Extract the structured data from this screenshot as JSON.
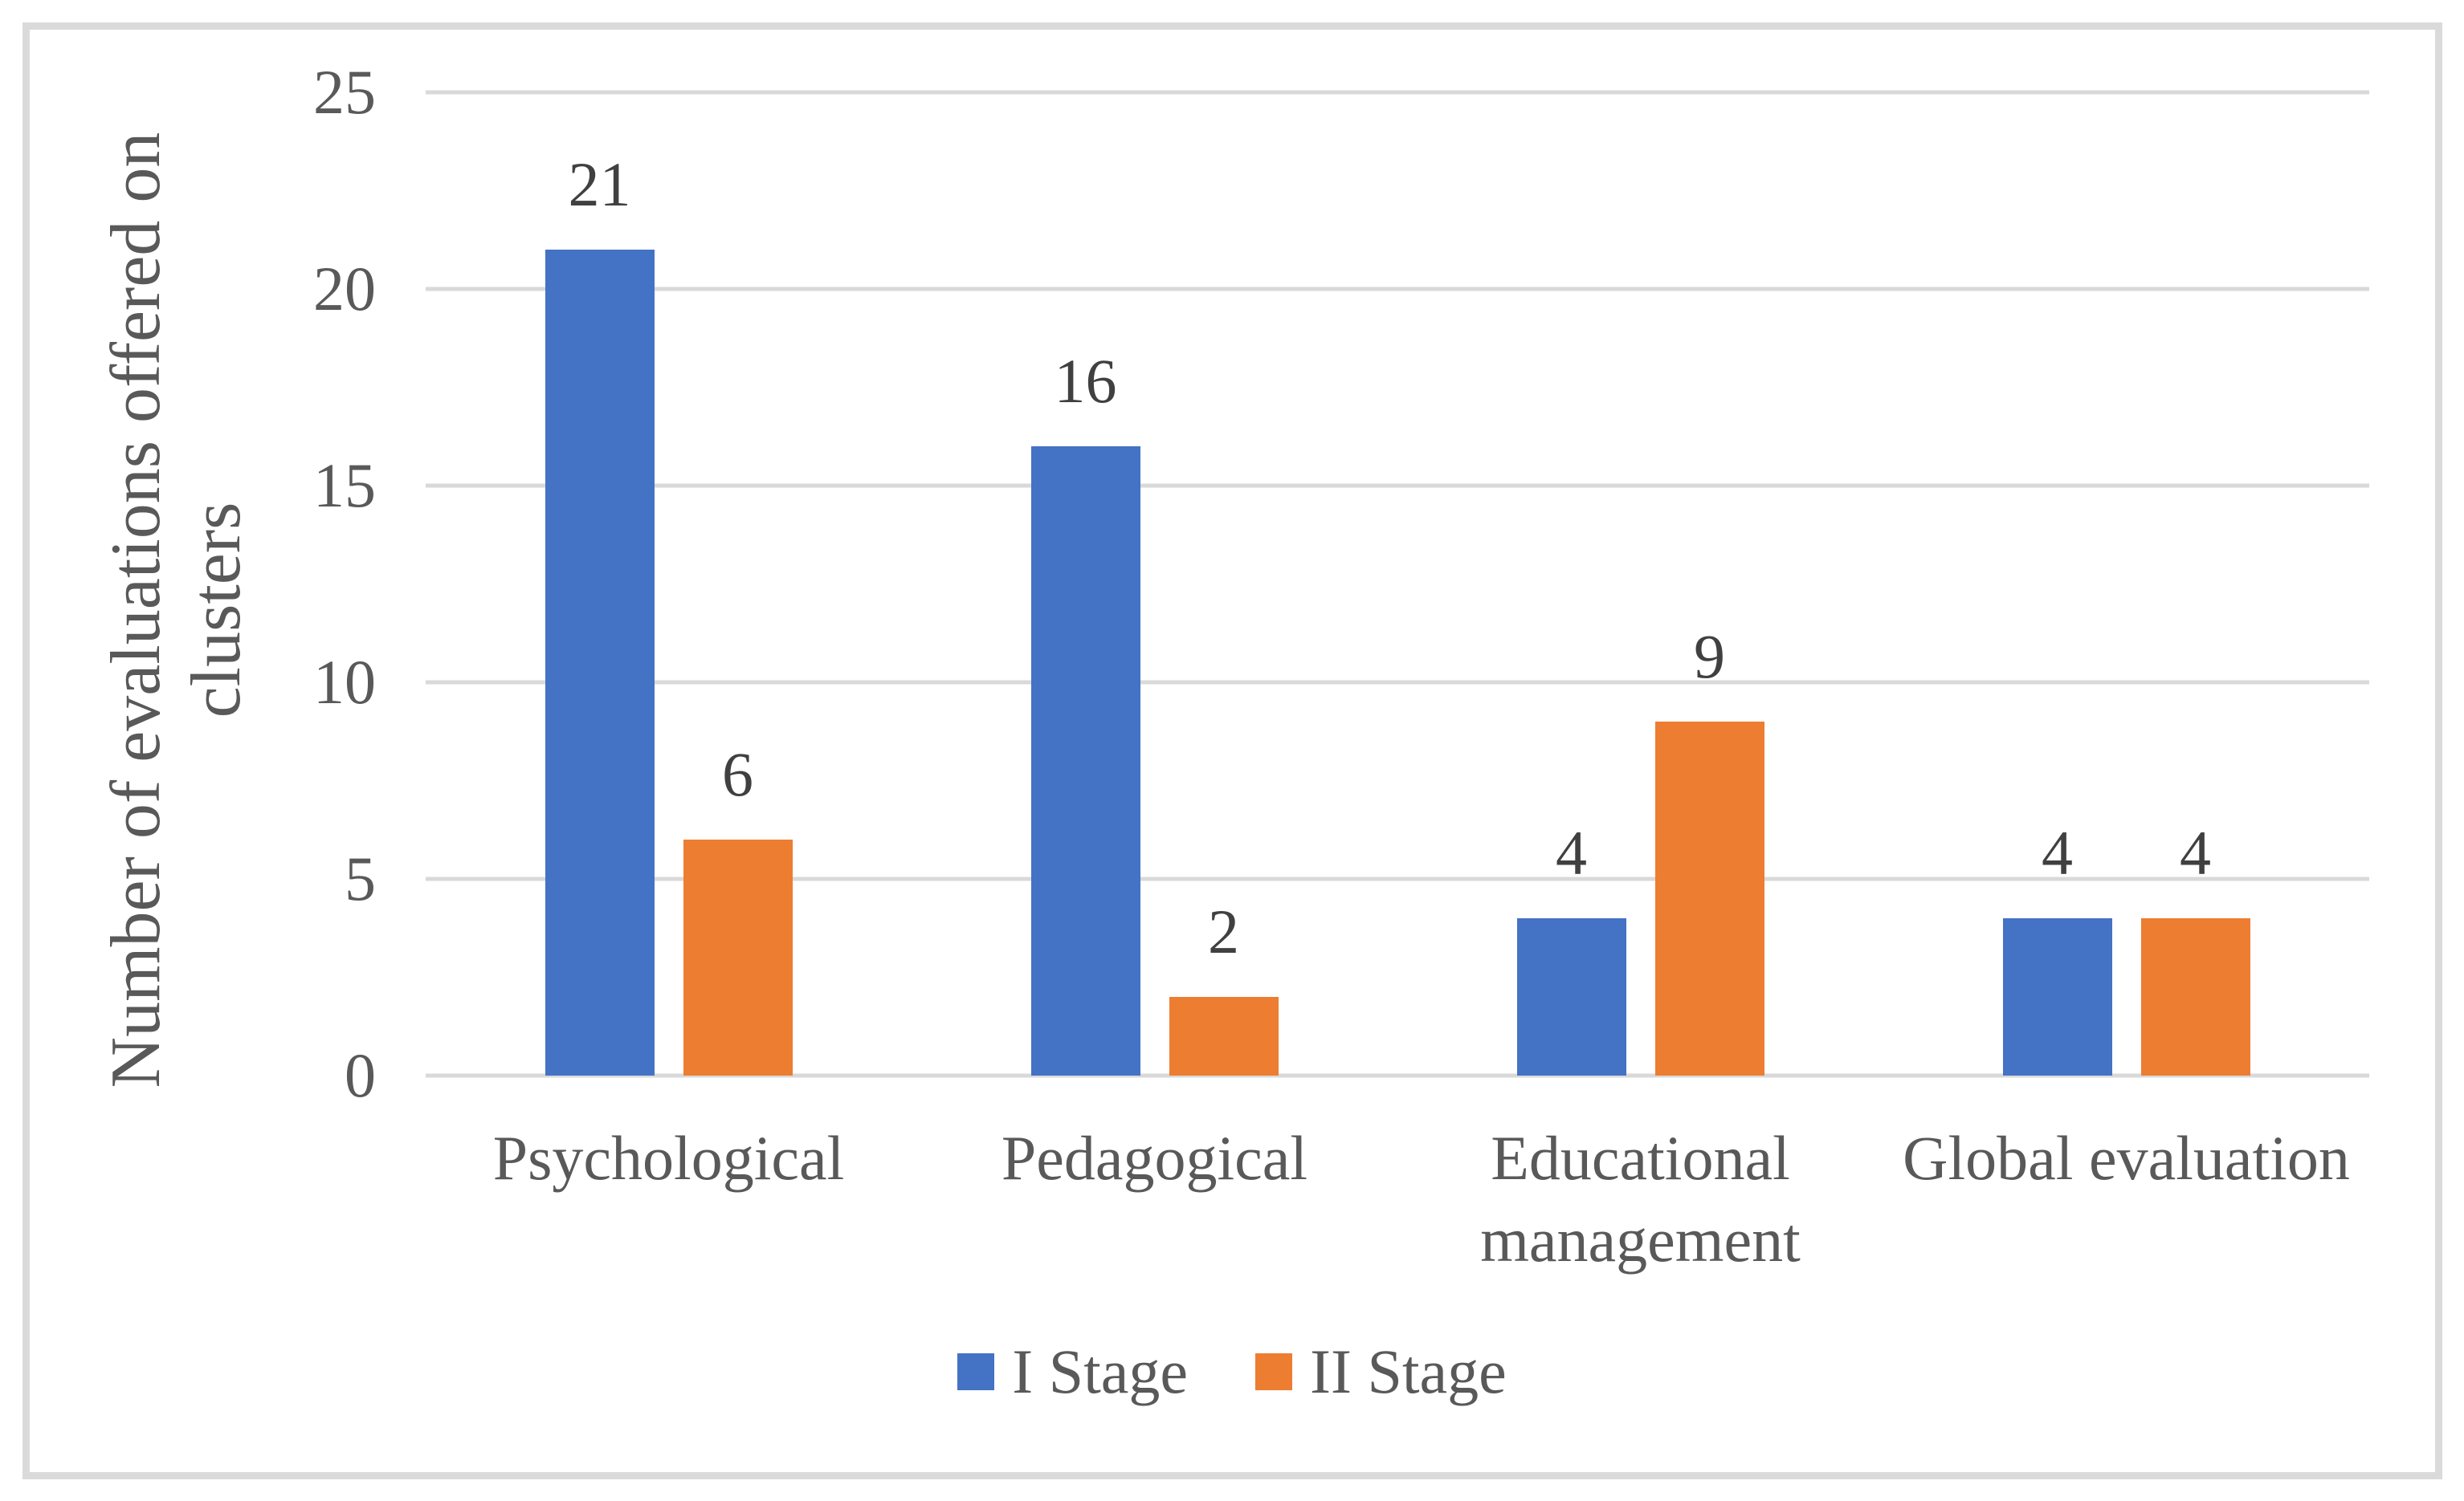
{
  "chart_data": {
    "type": "bar",
    "title": "",
    "categories": [
      "Psychological",
      "Pedagogical",
      "Educational management",
      "Global evaluation"
    ],
    "series": [
      {
        "name": "I Stage",
        "color": "#4472C4",
        "values": [
          21,
          16,
          4,
          4
        ]
      },
      {
        "name": "II Stage",
        "color": "#ED7D31",
        "values": [
          6,
          2,
          9,
          4
        ]
      }
    ],
    "xlabel": "",
    "ylabel": "Number of evaluations offered on clusters",
    "ylabel_lines": [
      "Number of evaluations offered on",
      "clusters"
    ],
    "ylim": [
      0,
      25
    ],
    "yticks": [
      0,
      5,
      10,
      15,
      20,
      25
    ],
    "grid": "horizontal",
    "legend_position": "bottom",
    "data_labels": true
  },
  "colors": {
    "series_1": "#4472C4",
    "series_2": "#ED7D31",
    "gridline": "#D9D9D9",
    "frame_border": "#DADADA",
    "axis_text": "#595959",
    "data_label_text": "#404040",
    "background": "#FFFFFF"
  }
}
